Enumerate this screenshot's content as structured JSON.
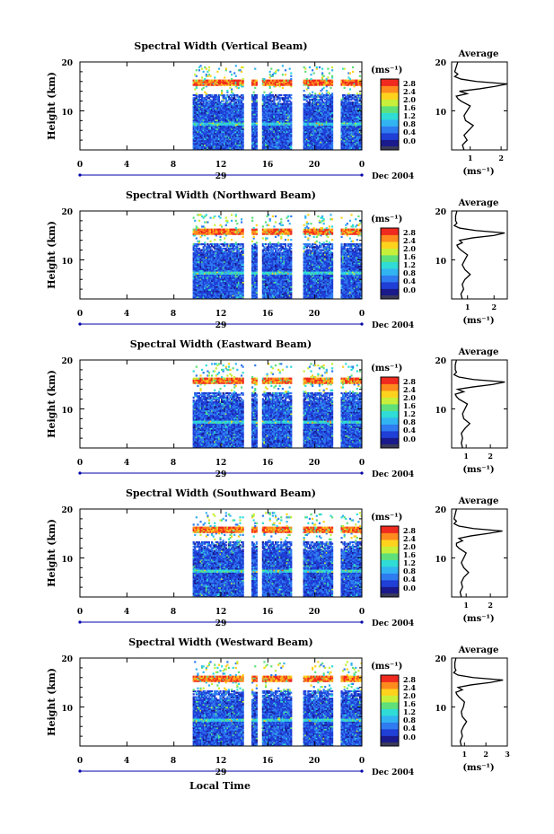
{
  "figure": {
    "x_axis_label": "Local Time",
    "date_label": "Dec 2004",
    "day_label": "29",
    "y_axis_label": "Height (km)",
    "colorbar_unit": "(ms⁻¹)",
    "average_title": "Average",
    "average_unit": "(ms⁻¹)",
    "time_ticks": [
      "0",
      "4",
      "8",
      "12",
      "16",
      "20",
      "0"
    ],
    "height_ticks": [
      "20",
      "10"
    ],
    "colorbar_ticks": [
      "2.8",
      "2.4",
      "2.0",
      "1.6",
      "1.2",
      "0.8",
      "0.4",
      "0.0"
    ],
    "colors": {
      "colormap": [
        "#1a1a8c",
        "#1f3fd6",
        "#2f7bf0",
        "#32b4f2",
        "#2fdcd6",
        "#5fe07a",
        "#c8ef3a",
        "#ffd21e",
        "#ff8a1e",
        "#f02a1e"
      ],
      "gap": "#ffffff",
      "axis": "#000000",
      "day_bar": "#0000aa"
    }
  },
  "chart_data": [
    {
      "type": "heatmap",
      "title": "Spectral Width (Vertical Beam)",
      "x_range_hours": [
        0,
        24
      ],
      "y_range_km": [
        2,
        20
      ],
      "color_range_ms": [
        0.0,
        3.0
      ],
      "data_coverage_hours": [
        [
          9.6,
          13.8
        ],
        [
          14.6,
          15.0
        ],
        [
          15.5,
          18.0
        ],
        [
          19.0,
          21.5
        ],
        [
          22.2,
          24.0
        ]
      ],
      "enhanced_layer_km": [
        15.2,
        16.2
      ],
      "secondary_layer_km": [
        6.8,
        7.6
      ],
      "average_profile": {
        "x_ticks": [
          "1",
          "2"
        ],
        "x_range_ms": [
          0.4,
          2.2
        ],
        "heights_km": [
          2,
          3,
          4,
          5,
          6,
          7,
          8,
          9,
          10,
          11,
          12,
          12.5,
          13,
          13.5,
          14,
          14.5,
          15,
          15.5,
          16,
          16.5,
          17,
          17.5,
          18,
          19,
          20
        ],
        "values_ms": [
          0.8,
          0.75,
          0.9,
          0.8,
          0.95,
          1.1,
          0.85,
          0.8,
          0.9,
          1.0,
          0.7,
          0.6,
          0.55,
          0.9,
          0.65,
          1.3,
          1.8,
          2.2,
          1.2,
          0.7,
          0.5,
          0.6,
          0.5,
          0.55,
          0.6
        ]
      }
    },
    {
      "type": "heatmap",
      "title": "Spectral Width (Northward Beam)",
      "x_range_hours": [
        0,
        24
      ],
      "y_range_km": [
        2,
        20
      ],
      "color_range_ms": [
        0.0,
        3.0
      ],
      "data_coverage_hours": [
        [
          9.6,
          13.8
        ],
        [
          14.6,
          15.0
        ],
        [
          15.5,
          18.0
        ],
        [
          19.0,
          21.5
        ],
        [
          22.2,
          24.0
        ]
      ],
      "enhanced_layer_km": [
        15.2,
        16.2
      ],
      "secondary_layer_km": [
        6.8,
        7.6
      ],
      "average_profile": {
        "x_ticks": [
          "1",
          "2"
        ],
        "x_range_ms": [
          0.4,
          2.5
        ],
        "heights_km": [
          2,
          3,
          4,
          5,
          6,
          7,
          8,
          9,
          10,
          11,
          12,
          12.5,
          13,
          13.5,
          14,
          14.5,
          15,
          15.5,
          16,
          16.5,
          17,
          17.5,
          18,
          19,
          20
        ],
        "values_ms": [
          0.8,
          0.75,
          0.85,
          0.8,
          0.9,
          1.1,
          0.9,
          0.8,
          0.9,
          1.0,
          0.75,
          0.65,
          0.6,
          0.8,
          0.7,
          1.2,
          2.0,
          2.4,
          1.3,
          0.7,
          0.5,
          0.6,
          0.55,
          0.55,
          0.6
        ]
      }
    },
    {
      "type": "heatmap",
      "title": "Spectral Width (Eastward Beam)",
      "x_range_hours": [
        0,
        24
      ],
      "y_range_km": [
        2,
        20
      ],
      "color_range_ms": [
        0.0,
        3.0
      ],
      "data_coverage_hours": [
        [
          9.6,
          13.8
        ],
        [
          14.6,
          15.0
        ],
        [
          15.5,
          18.0
        ],
        [
          19.0,
          21.5
        ],
        [
          22.2,
          24.0
        ]
      ],
      "enhanced_layer_km": [
        15.2,
        16.2
      ],
      "secondary_layer_km": [
        6.8,
        7.6
      ],
      "average_profile": {
        "x_ticks": [
          "1",
          "2"
        ],
        "x_range_ms": [
          0.4,
          2.7
        ],
        "heights_km": [
          2,
          3,
          4,
          5,
          6,
          7,
          8,
          9,
          10,
          11,
          12,
          12.5,
          13,
          13.5,
          14,
          14.5,
          15,
          15.5,
          16,
          16.5,
          17,
          17.5,
          18,
          19,
          20
        ],
        "values_ms": [
          0.85,
          0.8,
          0.85,
          0.8,
          0.95,
          1.15,
          0.9,
          0.85,
          0.95,
          1.05,
          0.7,
          0.6,
          0.55,
          0.9,
          0.65,
          1.3,
          2.1,
          2.6,
          1.3,
          0.7,
          0.5,
          0.6,
          0.55,
          0.55,
          0.6
        ]
      }
    },
    {
      "type": "heatmap",
      "title": "Spectral Width (Southward Beam)",
      "x_range_hours": [
        0,
        24
      ],
      "y_range_km": [
        2,
        20
      ],
      "color_range_ms": [
        0.0,
        3.0
      ],
      "data_coverage_hours": [
        [
          9.6,
          13.8
        ],
        [
          14.6,
          15.0
        ],
        [
          15.5,
          18.0
        ],
        [
          19.0,
          21.5
        ],
        [
          22.2,
          24.0
        ]
      ],
      "enhanced_layer_km": [
        15.2,
        16.2
      ],
      "secondary_layer_km": [
        6.8,
        7.6
      ],
      "average_profile": {
        "x_ticks": [
          "1",
          "2"
        ],
        "x_range_ms": [
          0.4,
          2.7
        ],
        "heights_km": [
          2,
          3,
          4,
          5,
          6,
          7,
          8,
          9,
          10,
          11,
          12,
          12.5,
          13,
          13.5,
          14,
          14.5,
          15,
          15.5,
          16,
          16.5,
          17,
          17.5,
          18,
          19,
          20
        ],
        "values_ms": [
          0.8,
          0.75,
          0.85,
          0.8,
          0.9,
          1.1,
          0.9,
          0.8,
          0.9,
          1.0,
          0.7,
          0.6,
          0.6,
          0.85,
          0.7,
          1.2,
          1.9,
          2.5,
          1.3,
          0.7,
          0.5,
          0.6,
          0.5,
          0.55,
          0.6
        ]
      }
    },
    {
      "type": "heatmap",
      "title": "Spectral Width (Westward Beam)",
      "x_range_hours": [
        0,
        24
      ],
      "y_range_km": [
        2,
        20
      ],
      "color_range_ms": [
        0.0,
        3.0
      ],
      "data_coverage_hours": [
        [
          9.6,
          13.8
        ],
        [
          14.6,
          15.0
        ],
        [
          15.5,
          18.0
        ],
        [
          19.0,
          21.5
        ],
        [
          22.2,
          24.0
        ]
      ],
      "enhanced_layer_km": [
        15.2,
        16.2
      ],
      "secondary_layer_km": [
        6.8,
        7.6
      ],
      "average_profile": {
        "x_ticks": [
          "1",
          "2",
          "3"
        ],
        "x_range_ms": [
          0.4,
          3.0
        ],
        "heights_km": [
          2,
          3,
          4,
          5,
          6,
          7,
          8,
          9,
          10,
          11,
          12,
          12.5,
          13,
          13.5,
          14,
          14.5,
          15,
          15.5,
          16,
          16.5,
          17,
          17.5,
          18,
          19,
          20
        ],
        "values_ms": [
          0.85,
          0.8,
          0.9,
          0.85,
          0.95,
          1.1,
          0.9,
          0.85,
          0.95,
          1.0,
          0.75,
          0.65,
          0.6,
          0.9,
          0.7,
          1.3,
          2.2,
          2.8,
          1.4,
          0.7,
          0.5,
          0.6,
          0.55,
          0.55,
          0.6
        ]
      }
    }
  ]
}
